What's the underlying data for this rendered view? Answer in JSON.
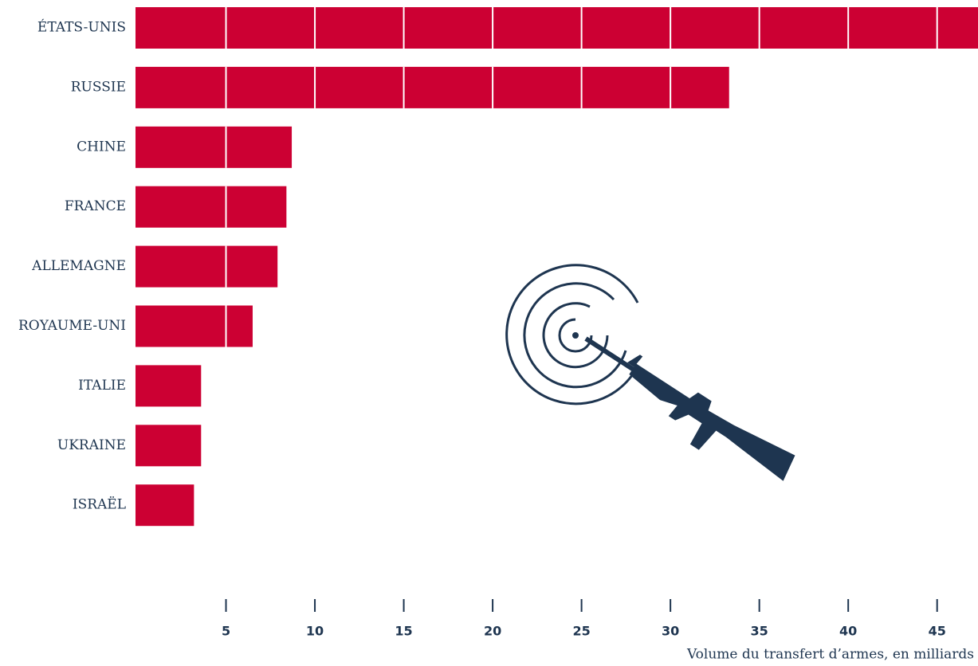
{
  "chart_data": {
    "type": "bar",
    "orientation": "horizontal",
    "categories": [
      "ÉTATS-UNIS",
      "RUSSIE",
      "CHINE",
      "FRANCE",
      "ALLEMAGNE",
      "ROYAUME-UNI",
      "ITALIE",
      "UKRAINE",
      "ISRAËL"
    ],
    "values": [
      47.3,
      33.3,
      8.7,
      8.4,
      7.9,
      6.5,
      3.6,
      3.6,
      3.2
    ],
    "color": "#cc0033",
    "xlim": [
      0,
      47.3
    ],
    "xticks": [
      5,
      10,
      15,
      20,
      25,
      30,
      35,
      40,
      45
    ],
    "x_label": "Volume du transfert d’armes, en milliards"
  }
}
